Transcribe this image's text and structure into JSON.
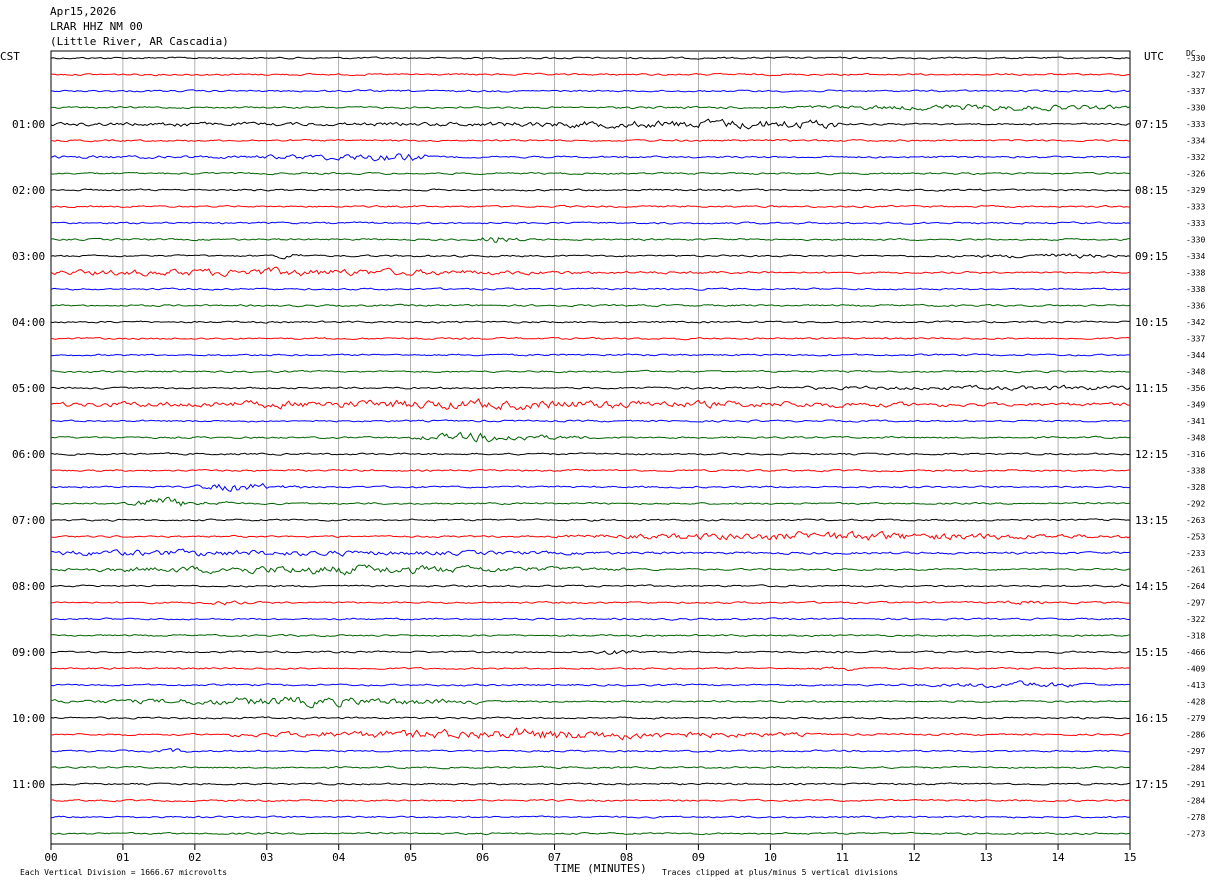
{
  "header": {
    "date": "Apr15,2026",
    "station": "LRAR HHZ NM 00",
    "location": "(Little River, AR Cascadia)"
  },
  "left_timezone": "CST",
  "right_timezone": "UTC",
  "dc_label": "DC",
  "xlabel": "TIME (MINUTES)",
  "footer_left": "Each Vertical Division = 1666.67 microvolts",
  "footer_right": "Traces clipped at plus/minus 5 vertical divisions",
  "colors": {
    "black": "#000000",
    "red": "#ff0000",
    "blue": "#0000ff",
    "green": "#006400",
    "grid": "#808080"
  },
  "chart_data": {
    "type": "line",
    "x_ticks": [
      "00",
      "01",
      "02",
      "03",
      "04",
      "05",
      "06",
      "07",
      "08",
      "09",
      "10",
      "11",
      "12",
      "13",
      "14",
      "15"
    ],
    "xlim": [
      0,
      15
    ],
    "left_hour_labels": [
      "01:00",
      "02:00",
      "03:00",
      "04:00",
      "05:00",
      "06:00",
      "07:00",
      "08:00",
      "09:00",
      "10:00",
      "11:00"
    ],
    "right_hour_labels": [
      "07:15",
      "08:15",
      "09:15",
      "10:15",
      "11:15",
      "12:15",
      "13:15",
      "14:15",
      "15:15",
      "16:15",
      "17:15"
    ],
    "dc_offsets": [
      "-330",
      "-327",
      "-337",
      "-330",
      "-333",
      "-334",
      "-332",
      "-326",
      "-329",
      "-333",
      "-333",
      "-330",
      "-334",
      "-338",
      "-338",
      "-336",
      "-342",
      "-337",
      "-344",
      "-348",
      "-356",
      "-349",
      "-341",
      "-348",
      "-316",
      "-338",
      "-328",
      "-292",
      "-263",
      "-253",
      "-233",
      "-261",
      "-264",
      "-297",
      "-322",
      "-318",
      "-466",
      "-409",
      "-413",
      "-428",
      "-279",
      "-286",
      "-297",
      "-284",
      "-291",
      "-284",
      "-278",
      "-273"
    ],
    "bursts": [
      {
        "row": 3,
        "start": 8.0,
        "end": 15,
        "amp": 4,
        "center": 13.0
      },
      {
        "row": 4,
        "start": 0,
        "end": 11.0,
        "amp": 6,
        "center": 10.0
      },
      {
        "row": 4,
        "start": 1.5,
        "end": 2.0,
        "amp": 5,
        "center": 1.75
      },
      {
        "row": 6,
        "start": 0,
        "end": 5.2,
        "amp": 5,
        "center": 4.9
      },
      {
        "row": 11,
        "start": 6.0,
        "end": 6.6,
        "amp": 6,
        "center": 6.2
      },
      {
        "row": 12,
        "start": 3.0,
        "end": 3.6,
        "amp": 4,
        "center": 3.3
      },
      {
        "row": 12,
        "start": 11.0,
        "end": 15,
        "amp": 3,
        "center": 14.0
      },
      {
        "row": 13,
        "start": 0,
        "end": 10.0,
        "amp": 5,
        "center": 3.0
      },
      {
        "row": 20,
        "start": 0,
        "end": 15,
        "amp": 3,
        "center": 14.5
      },
      {
        "row": 21,
        "start": 0,
        "end": 15,
        "amp": 6,
        "center": 6.0
      },
      {
        "row": 23,
        "start": 5.0,
        "end": 7.5,
        "amp": 6,
        "center": 6.0
      },
      {
        "row": 26,
        "start": 2.0,
        "end": 3.5,
        "amp": 6,
        "center": 2.6
      },
      {
        "row": 27,
        "start": 1.0,
        "end": 2.5,
        "amp": 7,
        "center": 1.5
      },
      {
        "row": 29,
        "start": 7.0,
        "end": 15,
        "amp": 6,
        "center": 11.0
      },
      {
        "row": 30,
        "start": 0,
        "end": 15,
        "amp": 4,
        "center": 2.0
      },
      {
        "row": 31,
        "start": 0,
        "end": 8.0,
        "amp": 6,
        "center": 4.0
      },
      {
        "row": 32,
        "start": 14.5,
        "end": 15,
        "amp": 4,
        "center": 15.0
      },
      {
        "row": 33,
        "start": 2.0,
        "end": 3.0,
        "amp": 3,
        "center": 2.4
      },
      {
        "row": 33,
        "start": 13.0,
        "end": 14.0,
        "amp": 3,
        "center": 13.5
      },
      {
        "row": 36,
        "start": 7.5,
        "end": 8.5,
        "amp": 4,
        "center": 7.9
      },
      {
        "row": 37,
        "start": 10.5,
        "end": 11.5,
        "amp": 3,
        "center": 11.0
      },
      {
        "row": 38,
        "start": 11.5,
        "end": 14.5,
        "amp": 4,
        "center": 13.5
      },
      {
        "row": 39,
        "start": 0,
        "end": 6.0,
        "amp": 6,
        "center": 3.5
      },
      {
        "row": 41,
        "start": 2.5,
        "end": 10.5,
        "amp": 7,
        "center": 6.5
      },
      {
        "row": 42,
        "start": 1.5,
        "end": 2.0,
        "amp": 3,
        "center": 1.7
      }
    ]
  }
}
